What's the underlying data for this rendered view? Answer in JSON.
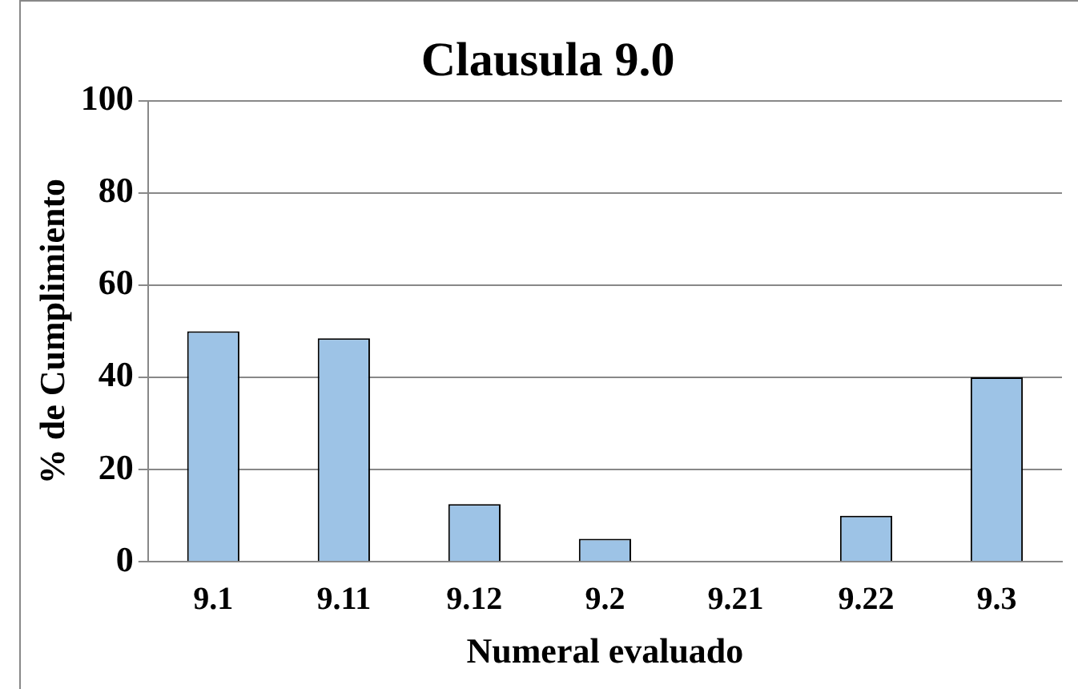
{
  "chart_data": {
    "type": "bar",
    "title": "Clausula 9.0",
    "xlabel": "Numeral evaluado",
    "ylabel": "% de Cumplimiento",
    "categories": [
      "9.1",
      "9.11",
      "9.12",
      "9.2",
      "9.21",
      "9.22",
      "9.3"
    ],
    "values": [
      50,
      48.5,
      12.5,
      5,
      0,
      10,
      40
    ],
    "color": "#9dc3e6",
    "ylim": [
      0,
      100
    ],
    "yticks": [
      0,
      20,
      40,
      60,
      80,
      100
    ],
    "grid": "y",
    "legend": false
  }
}
